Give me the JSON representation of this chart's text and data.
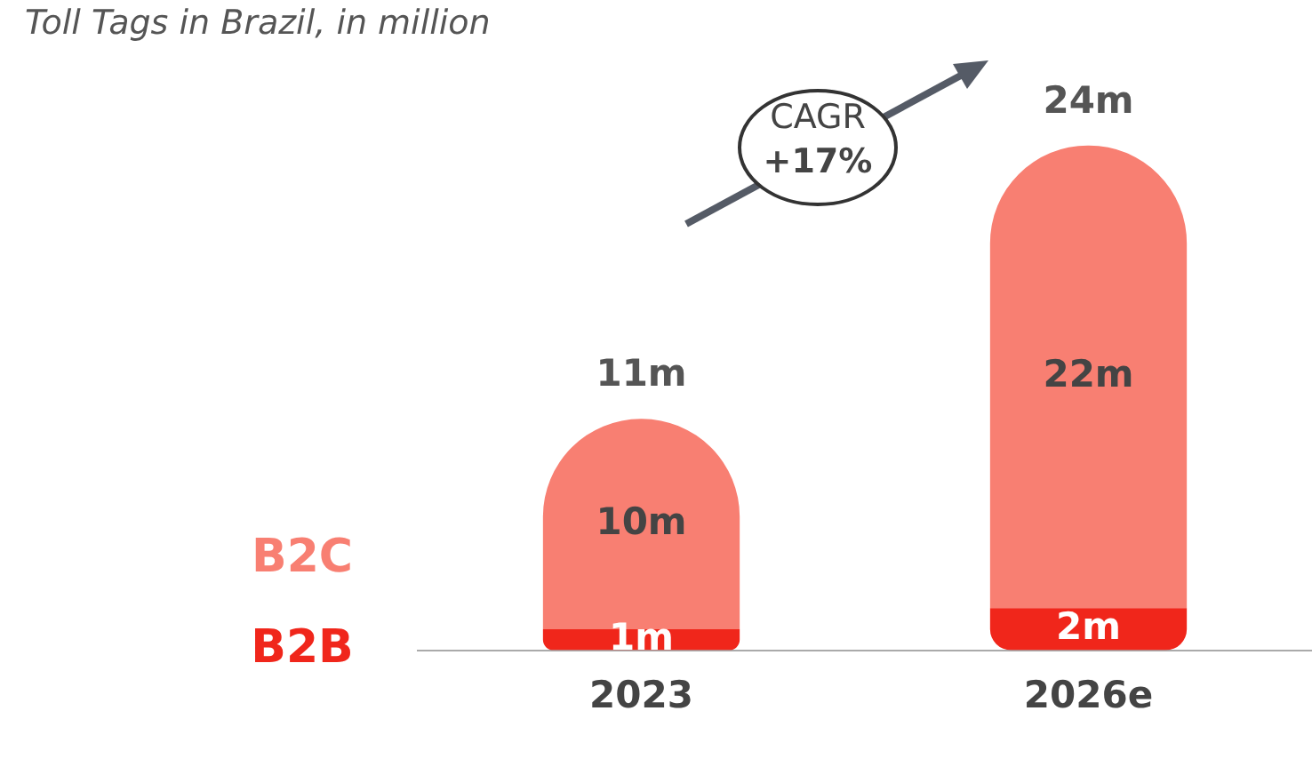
{
  "chart_data": {
    "type": "bar",
    "title": "Toll Tags in Brazil, in million",
    "categories": [
      "2023",
      "2026e"
    ],
    "stacked": true,
    "series": [
      {
        "name": "B2B",
        "color": "#f0261b",
        "values": [
          1,
          2
        ],
        "value_labels": [
          "1m",
          "2m"
        ]
      },
      {
        "name": "B2C",
        "color": "#f87f72",
        "values": [
          10,
          22
        ],
        "value_labels": [
          "10m",
          "22m"
        ]
      }
    ],
    "totals": [
      "11m",
      "24m"
    ],
    "annotations": [
      "CAGR",
      "+17%"
    ],
    "legend": "left",
    "grid": false,
    "tick_labels": "x"
  }
}
